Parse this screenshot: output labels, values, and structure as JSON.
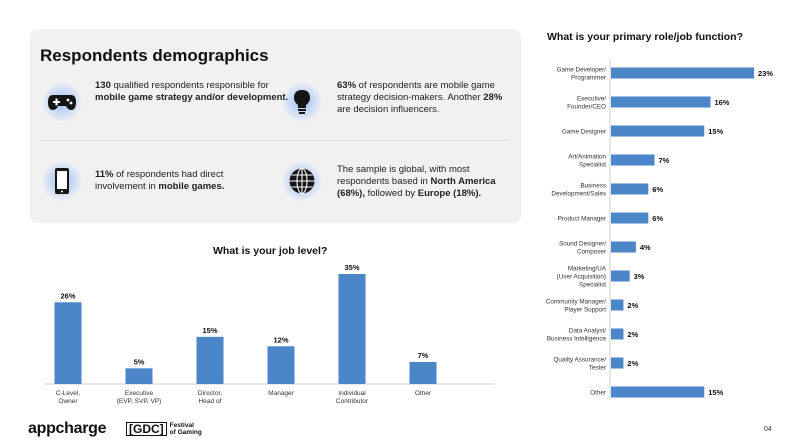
{
  "demographics": {
    "title": "Respondents demographics",
    "stats": [
      {
        "icon": "gamepad-icon",
        "text_parts": [
          {
            "b": true,
            "t": "130"
          },
          {
            "b": false,
            "t": " qualified respondents responsible for "
          },
          {
            "b": true,
            "t": "mobile game strategy and/or development."
          }
        ]
      },
      {
        "icon": "lightbulb-icon",
        "text_parts": [
          {
            "b": true,
            "t": "63%"
          },
          {
            "b": false,
            "t": " of respondents are mobile game strategy decision-makers. Another "
          },
          {
            "b": true,
            "t": "28%"
          },
          {
            "b": false,
            "t": " are decision influencers."
          }
        ]
      },
      {
        "icon": "smartphone-icon",
        "text_parts": [
          {
            "b": true,
            "t": "11%"
          },
          {
            "b": false,
            "t": " of respondents had direct involvement in "
          },
          {
            "b": true,
            "t": "mobile games."
          }
        ]
      },
      {
        "icon": "globe-icon",
        "text_parts": [
          {
            "b": false,
            "t": "The sample is global, with most respondents based in "
          },
          {
            "b": true,
            "t": "North America (68%),"
          },
          {
            "b": false,
            "t": " followed by "
          },
          {
            "b": true,
            "t": "Europe (18%)."
          }
        ]
      }
    ]
  },
  "chart_data": [
    {
      "type": "bar",
      "title": "What is your job level?",
      "categories": [
        [
          "C-Level,",
          "Owner"
        ],
        [
          "Executive",
          "(EVP, SVP, VP)"
        ],
        [
          "Director,",
          "Head of"
        ],
        [
          "Manager"
        ],
        [
          "Individual",
          "Contributor"
        ],
        [
          "Other"
        ]
      ],
      "values": [
        26,
        5,
        15,
        12,
        35,
        7
      ],
      "value_labels": [
        "26%",
        "5%",
        "15%",
        "12%",
        "35%",
        "7%"
      ],
      "ylim": [
        0,
        35
      ],
      "bar_color": "#4b86c9",
      "grid": false
    },
    {
      "type": "bar",
      "orientation": "horizontal",
      "title": "What is your primary role/job function?",
      "categories": [
        [
          "Game Developer/",
          "Programmer"
        ],
        [
          "Executive/",
          "Founder/CEO"
        ],
        [
          "Game Designer"
        ],
        [
          "Art/Animation",
          "Specialist"
        ],
        [
          "Business",
          "Development/Sales"
        ],
        [
          "Product Manager"
        ],
        [
          "Sound Designer/",
          "Composer"
        ],
        [
          "Marketing/UA",
          "(User Acquisition)",
          "Specialist"
        ],
        [
          "Community Manager/",
          "Player Support"
        ],
        [
          "Data Analyst/",
          "Business Intelligence"
        ],
        [
          "Quality Assurance/",
          "Tester"
        ],
        [
          "Other"
        ]
      ],
      "values": [
        23,
        16,
        15,
        7,
        6,
        6,
        4,
        3,
        2,
        2,
        2,
        15
      ],
      "value_labels": [
        "23%",
        "16%",
        "15%",
        "7%",
        "6%",
        "6%",
        "4%",
        "3%",
        "2%",
        "2%",
        "2%",
        "15%"
      ],
      "xlim": [
        0,
        23
      ],
      "bar_color": "#4b86c9",
      "grid": false
    }
  ],
  "footer": {
    "brand": "appcharge",
    "gdc_mark": "[GDC]",
    "gdc_line1": "Festival",
    "gdc_line2": "of Gaming",
    "page_number": "04"
  }
}
